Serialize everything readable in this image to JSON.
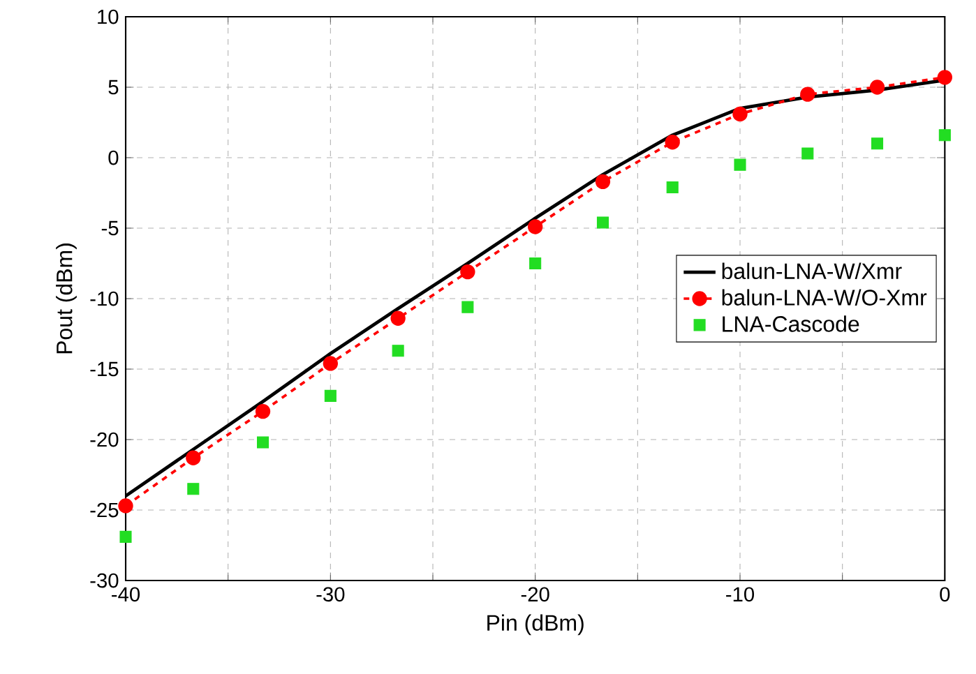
{
  "chart_data": {
    "type": "line",
    "xlabel": "Pin (dBm)",
    "ylabel": "Pout (dBm)",
    "xlim": [
      -40,
      0
    ],
    "ylim": [
      -30,
      10
    ],
    "xticks": [
      -40,
      {
        "value": -35,
        "label": null
      },
      -30,
      {
        "value": -25,
        "label": null
      },
      -20,
      {
        "value": -15,
        "label": null
      },
      -10,
      {
        "value": -5,
        "label": null
      },
      0
    ],
    "yticks": [
      -30,
      -25,
      -20,
      -15,
      -10,
      -5,
      0,
      5,
      10
    ],
    "grid": true,
    "legend": "right",
    "series": [
      {
        "name": "balun-LNA-W/Xmr",
        "color": "#000000",
        "marker": "none",
        "line_style": "solid",
        "x": [
          -40,
          -36.7,
          -33.3,
          -30,
          -26.7,
          -23.3,
          -20,
          -16.7,
          -13.3,
          -10,
          -6.7,
          -3.3,
          0
        ],
        "values": [
          -24.0,
          -20.7,
          -17.3,
          -13.9,
          -10.7,
          -7.5,
          -4.3,
          -1.2,
          1.6,
          3.5,
          4.3,
          4.8,
          5.5
        ]
      },
      {
        "name": "balun-LNA-W/O-Xmr",
        "color": "#ff0000",
        "marker": "circle",
        "line_style": "dashed",
        "x": [
          -40,
          -36.7,
          -33.3,
          -30,
          -26.7,
          -23.3,
          -20,
          -16.7,
          -13.3,
          -10,
          -6.7,
          -3.3,
          0
        ],
        "values": [
          -24.7,
          -21.3,
          -18.0,
          -14.6,
          -11.4,
          -8.1,
          -4.9,
          -1.7,
          1.1,
          3.1,
          4.5,
          5.0,
          5.7
        ]
      },
      {
        "name": "LNA-Cascode",
        "color": "#22dd22",
        "type": "scatter",
        "marker": "square",
        "x": [
          -40,
          -36.7,
          -33.3,
          -30,
          -26.7,
          -23.3,
          -20,
          -16.7,
          -13.3,
          -10,
          -6.7,
          -3.3,
          0
        ],
        "values": [
          -26.9,
          -23.5,
          -20.2,
          -16.9,
          -13.7,
          -10.6,
          -7.5,
          -4.6,
          -2.1,
          -0.5,
          0.3,
          1.0,
          1.6
        ]
      }
    ]
  }
}
